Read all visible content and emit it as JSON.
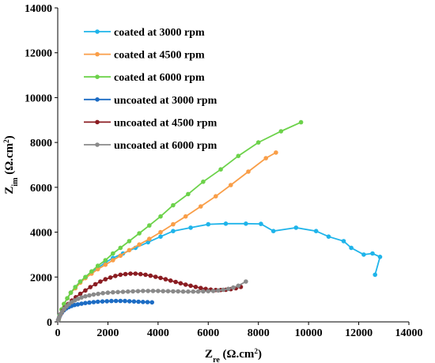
{
  "chart_data": {
    "type": "scatter",
    "xlabel": {
      "base": "Z",
      "sub": "re",
      "unit": " (Ω.cm",
      "sup": "2",
      "close": ")"
    },
    "ylabel": {
      "base": "Z",
      "sub": "im",
      "unit": " (Ω.cm",
      "sup": "2",
      "close": ")"
    },
    "xlim": [
      0,
      14000
    ],
    "ylim": [
      0,
      14000
    ],
    "xticks": [
      0,
      2000,
      4000,
      6000,
      8000,
      10000,
      12000,
      14000
    ],
    "yticks": [
      0,
      2000,
      4000,
      6000,
      8000,
      10000,
      12000,
      14000
    ],
    "grid": false,
    "legend_position": "top-left",
    "series": [
      {
        "name": "coated at 3000 rpm",
        "color": "#1fb4ea",
        "x": [
          30,
          80,
          150,
          250,
          380,
          520,
          700,
          900,
          1120,
          1350,
          1600,
          1900,
          2200,
          2600,
          3100,
          3600,
          4100,
          4600,
          5300,
          6000,
          6700,
          7500,
          8100,
          8600,
          9500,
          10300,
          10800,
          11400,
          11700,
          12200,
          12550,
          12850,
          12650
        ],
        "y": [
          100,
          300,
          550,
          800,
          1050,
          1300,
          1550,
          1800,
          2000,
          2200,
          2400,
          2650,
          2850,
          3050,
          3300,
          3550,
          3800,
          4050,
          4200,
          4350,
          4380,
          4380,
          4370,
          4050,
          4200,
          4050,
          3800,
          3600,
          3300,
          3000,
          3050,
          2900,
          2100
        ]
      },
      {
        "name": "coated at 4500 rpm",
        "color": "#f99e48",
        "x": [
          30,
          80,
          150,
          250,
          380,
          520,
          700,
          900,
          1100,
          1350,
          1600,
          1900,
          2200,
          2500,
          2850,
          3250,
          3650,
          4100,
          4600,
          5100,
          5700,
          6300,
          6900,
          7600,
          8300,
          8700
        ],
        "y": [
          100,
          300,
          550,
          800,
          1050,
          1300,
          1500,
          1750,
          1950,
          2150,
          2350,
          2550,
          2750,
          2950,
          3200,
          3450,
          3700,
          4000,
          4350,
          4700,
          5150,
          5600,
          6100,
          6700,
          7300,
          7550
        ]
      },
      {
        "name": "coated at 6000 rpm",
        "color": "#6cd24a",
        "x": [
          30,
          80,
          150,
          250,
          380,
          520,
          700,
          900,
          1100,
          1350,
          1600,
          1900,
          2200,
          2500,
          2850,
          3250,
          3650,
          4100,
          4600,
          5200,
          5800,
          6500,
          7200,
          8000,
          8900,
          9700
        ],
        "y": [
          100,
          300,
          550,
          800,
          1050,
          1300,
          1550,
          1800,
          2000,
          2250,
          2500,
          2750,
          3050,
          3300,
          3600,
          3950,
          4300,
          4700,
          5200,
          5700,
          6250,
          6800,
          7400,
          8000,
          8500,
          8900
        ]
      },
      {
        "name": "uncoated at 3000 rpm",
        "color": "#1c6cc4",
        "x": [
          20,
          50,
          100,
          170,
          250,
          340,
          440,
          550,
          670,
          800,
          950,
          1100,
          1260,
          1430,
          1600,
          1780,
          1960,
          2140,
          2320,
          2500,
          2680,
          2860,
          3040,
          3220,
          3400,
          3580,
          3760
        ],
        "y": [
          80,
          180,
          300,
          420,
          520,
          600,
          660,
          710,
          750,
          780,
          810,
          840,
          860,
          880,
          900,
          910,
          920,
          930,
          935,
          935,
          930,
          920,
          910,
          900,
          890,
          880,
          870
        ]
      },
      {
        "name": "uncoated at 4500 rpm",
        "color": "#8b1d22",
        "x": [
          20,
          60,
          120,
          200,
          300,
          420,
          560,
          720,
          900,
          1100,
          1300,
          1500,
          1700,
          1900,
          2100,
          2300,
          2500,
          2700,
          2900,
          3100,
          3300,
          3500,
          3700,
          3900,
          4100,
          4300,
          4500,
          4700,
          4900,
          5100,
          5300,
          5500,
          5700,
          5900,
          6100,
          6300,
          6500,
          6700,
          6900,
          7100,
          7300
        ],
        "y": [
          80,
          200,
          350,
          500,
          650,
          800,
          950,
          1100,
          1250,
          1400,
          1550,
          1680,
          1800,
          1900,
          1980,
          2050,
          2100,
          2130,
          2150,
          2150,
          2130,
          2100,
          2060,
          2010,
          1960,
          1900,
          1840,
          1780,
          1720,
          1660,
          1610,
          1560,
          1510,
          1470,
          1440,
          1420,
          1420,
          1430,
          1460,
          1500,
          1560
        ]
      },
      {
        "name": "uncoated at 6000 rpm",
        "color": "#8a8a8a",
        "x": [
          20,
          60,
          110,
          180,
          260,
          350,
          450,
          560,
          680,
          810,
          950,
          1100,
          1260,
          1430,
          1610,
          1800,
          2000,
          2200,
          2400,
          2600,
          2800,
          3000,
          3200,
          3400,
          3600,
          3800,
          4000,
          4200,
          4400,
          4600,
          4800,
          5000,
          5200,
          5400,
          5600,
          5800,
          6000,
          6200,
          6400,
          6600,
          6800,
          7000,
          7200,
          7500
        ],
        "y": [
          80,
          200,
          330,
          460,
          580,
          690,
          790,
          880,
          960,
          1030,
          1090,
          1140,
          1180,
          1220,
          1250,
          1280,
          1300,
          1320,
          1330,
          1340,
          1350,
          1360,
          1370,
          1380,
          1380,
          1380,
          1380,
          1370,
          1370,
          1360,
          1360,
          1350,
          1350,
          1350,
          1350,
          1360,
          1370,
          1380,
          1400,
          1430,
          1470,
          1530,
          1610,
          1800
        ]
      }
    ]
  }
}
